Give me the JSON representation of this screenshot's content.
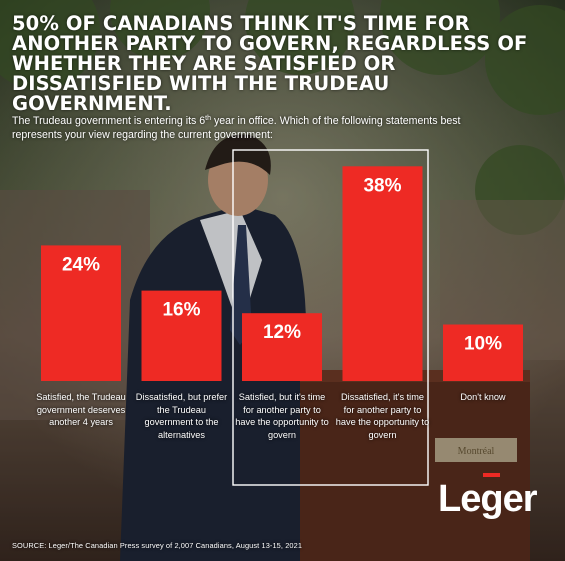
{
  "headline": "50% of Canadians think it's time for another party to govern, regardless of whether they are satisfied or dissatisfied with the Trudeau government.",
  "subtitle": {
    "before_sup": "The Trudeau government is entering its 6",
    "sup": "th",
    "after_sup": " year in office. Which of the following statements best represents your view regarding the current government:"
  },
  "source": "SOURCE: Leger/The Canadian Press survey of 2,007 Canadians, August 13-15, 2021",
  "logo": {
    "part1": "Le",
    "part2": "g",
    "part3": "er"
  },
  "colors": {
    "bar": "#ee2a24",
    "text": "#ffffff",
    "highlight_box": "#ffffff"
  },
  "chart_data": {
    "type": "bar",
    "categories": [
      "Satisfied, the Trudeau government deserves another 4 years",
      "Dissatisfied, but prefer the Trudeau government to the alternatives",
      "Satisfied, but it's time for another party to have the opportunity to govern",
      "Dissatisfied, it's time for another party to have the opportunity to govern",
      "Don't know"
    ],
    "values": [
      24,
      16,
      12,
      38,
      10
    ],
    "value_labels": [
      "24%",
      "16%",
      "12%",
      "38%",
      "10%"
    ],
    "unit": "%",
    "ylim": [
      0,
      40
    ],
    "grid": false,
    "highlighted_categories": [
      2,
      3
    ]
  }
}
